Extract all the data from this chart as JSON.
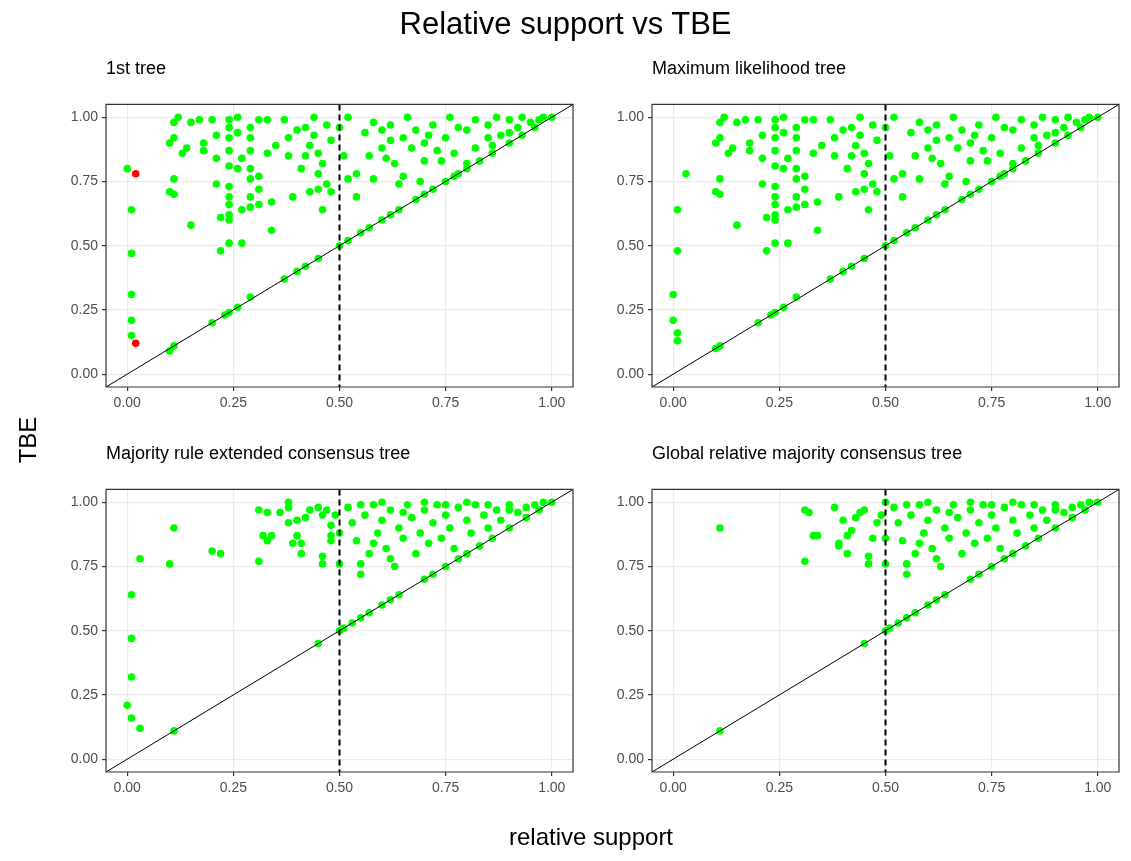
{
  "chart_data": [
    {
      "type": "scatter",
      "title": "1st tree",
      "annotations": [
        "Relative support vs TBE"
      ],
      "ylabel": "TBE",
      "xlim": [
        -0.05,
        1.05
      ],
      "ylim": [
        -0.05,
        1.05
      ],
      "xticks": [
        {
          "value": 0,
          "label": "0.00"
        },
        {
          "value": 0.25,
          "label": "0.25"
        },
        {
          "value": 0.5,
          "label": "0.50"
        },
        {
          "value": 0.75,
          "label": "0.75"
        },
        {
          "value": 1,
          "label": "1.00"
        }
      ],
      "yticks": [
        {
          "value": 0,
          "label": "0.00"
        },
        {
          "value": 0.25,
          "label": "0.25"
        },
        {
          "value": 0.5,
          "label": "0.50"
        },
        {
          "value": 0.75,
          "label": "0.75"
        },
        {
          "value": 1,
          "label": "1.00"
        }
      ],
      "grid": true,
      "marker": "circle",
      "ref_lines": [
        {
          "axis": "x",
          "value": 0.5,
          "color": "#000000",
          "line_style": "dashed"
        }
      ],
      "series": [
        {
          "type": "scatter",
          "color": "#00ff00",
          "x": [
            0,
            0.01,
            0.01,
            0.01,
            0.01,
            0.01,
            0.1,
            0.11,
            0.2,
            0.23,
            0.24,
            0.26,
            0.29,
            0.37,
            0.4,
            0.42,
            0.45,
            0.5,
            0.52,
            0.55,
            0.57,
            0.6,
            0.62,
            0.64,
            0.68,
            0.7,
            0.72,
            0.75,
            0.77,
            0.8,
            0.83,
            0.86,
            0.9,
            0.93,
            0.96,
            1,
            0.11,
            0.12,
            0.1,
            0.11,
            0.11,
            0.1,
            0.11,
            0.15,
            0.17,
            0.13,
            0.14,
            0.18,
            0.18,
            0.15,
            0.2,
            0.21,
            0.21,
            0.21,
            0.22,
            0.22,
            0.24,
            0.24,
            0.24,
            0.24,
            0.24,
            0.24,
            0.24,
            0.24,
            0.24,
            0.24,
            0.24,
            0.26,
            0.26,
            0.26,
            0.27,
            0.27,
            0.27,
            0.29,
            0.29,
            0.29,
            0.29,
            0.29,
            0.29,
            0.29,
            0.31,
            0.31,
            0.31,
            0.31,
            0.33,
            0.33,
            0.34,
            0.34,
            0.35,
            0.37,
            0.38,
            0.38,
            0.39,
            0.4,
            0.41,
            0.42,
            0.42,
            0.43,
            0.43,
            0.44,
            0.44,
            0.45,
            0.45,
            0.45,
            0.46,
            0.46,
            0.47,
            0.47,
            0.48,
            0.48,
            0.5,
            0.51,
            0.52,
            0.52,
            0.54,
            0.54,
            0.56,
            0.57,
            0.58,
            0.58,
            0.6,
            0.61,
            0.62,
            0.63,
            0.64,
            0.65,
            0.66,
            0.67,
            0.69,
            0.7,
            0.71,
            0.73,
            0.74,
            0.76,
            0.77,
            0.78,
            0.8,
            0.82,
            0.8,
            0.85,
            0.88,
            0.9,
            0.92,
            0.95,
            0.97,
            0.85,
            0.82,
            0.78,
            0.75,
            0.72,
            0.68,
            0.65,
            0.87,
            0.93,
            0.98,
            0.9,
            0.86,
            0.7,
            0.62,
            0.6
          ],
          "values": [
            0.8,
            0.64,
            0.47,
            0.31,
            0.21,
            0.15,
            0.09,
            0.11,
            0.2,
            0.23,
            0.24,
            0.26,
            0.3,
            0.37,
            0.4,
            0.42,
            0.45,
            0.5,
            0.52,
            0.55,
            0.57,
            0.6,
            0.62,
            0.64,
            0.68,
            0.7,
            0.72,
            0.75,
            0.77,
            0.8,
            0.83,
            0.86,
            0.9,
            0.93,
            0.96,
            1,
            0.98,
            1.0,
            0.9,
            0.92,
            0.76,
            0.71,
            0.7,
            0.98,
            0.99,
            0.86,
            0.88,
            0.9,
            0.87,
            0.58,
            0.99,
            0.93,
            0.84,
            0.74,
            0.61,
            0.48,
            0.51,
            0.99,
            0.96,
            0.92,
            0.87,
            0.81,
            0.73,
            0.69,
            0.66,
            0.62,
            0.6,
            1.0,
            0.94,
            0.8,
            0.84,
            0.64,
            0.51,
            0.96,
            0.92,
            0.87,
            0.8,
            0.76,
            0.69,
            0.65,
            0.99,
            0.77,
            0.72,
            0.66,
            0.99,
            0.86,
            0.67,
            0.56,
            0.89,
            0.99,
            0.92,
            0.85,
            0.69,
            0.95,
            0.8,
            0.96,
            0.85,
            0.89,
            0.71,
            1.0,
            0.93,
            0.86,
            0.78,
            0.72,
            0.82,
            0.64,
            0.97,
            0.74,
            0.91,
            0.71,
            0.96,
            0.85,
            1.0,
            0.76,
            0.78,
            0.69,
            0.94,
            0.85,
            0.98,
            0.76,
            0.88,
            0.84,
            0.97,
            0.82,
            0.74,
            0.77,
            1.0,
            0.88,
            0.75,
            0.83,
            0.93,
            0.87,
            0.83,
            1.0,
            0.86,
            0.78,
            0.82,
            0.88,
            0.95,
            0.97,
            0.93,
            0.99,
            0.96,
            0.98,
            0.99,
            0.92,
            0.99,
            0.96,
            0.92,
            0.97,
            0.95,
            0.92,
            1.0,
            1.0,
            1.0,
            0.94,
            0.89,
            0.9,
            0.91,
            0.95
          ]
        },
        {
          "type": "scatter",
          "color": "#ff0000",
          "x": [
            0.02,
            0.02
          ],
          "values": [
            0.78,
            0.12
          ]
        },
        {
          "type": "line",
          "color": "#000000",
          "x": [
            -0.05,
            1.05
          ],
          "values": [
            -0.05,
            1.05
          ],
          "marker": "none"
        }
      ]
    },
    {
      "type": "scatter",
      "title": "Maximum likelihood tree",
      "xlim": [
        -0.05,
        1.05
      ],
      "ylim": [
        -0.05,
        1.05
      ],
      "xticks": [
        {
          "value": 0,
          "label": "0.00"
        },
        {
          "value": 0.25,
          "label": "0.25"
        },
        {
          "value": 0.5,
          "label": "0.50"
        },
        {
          "value": 0.75,
          "label": "0.75"
        },
        {
          "value": 1,
          "label": "1.00"
        }
      ],
      "yticks": [
        {
          "value": 0,
          "label": "0.00"
        },
        {
          "value": 0.25,
          "label": "0.25"
        },
        {
          "value": 0.5,
          "label": "0.50"
        },
        {
          "value": 0.75,
          "label": "0.75"
        },
        {
          "value": 1,
          "label": "1.00"
        }
      ],
      "grid": true,
      "marker": "circle",
      "ref_lines": [
        {
          "axis": "x",
          "value": 0.5,
          "color": "#000000",
          "line_style": "dashed"
        }
      ],
      "series": [
        {
          "type": "scatter",
          "color": "#00ff00",
          "x": [
            0,
            0,
            0.01,
            0.01,
            0.01,
            0.01,
            0.03,
            0.1,
            0.11,
            0.2,
            0.23,
            0.24,
            0.26,
            0.29,
            0.37,
            0.4,
            0.42,
            0.45,
            0.5,
            0.52,
            0.55,
            0.57,
            0.6,
            0.62,
            0.64,
            0.68,
            0.7,
            0.72,
            0.75,
            0.77,
            0.8,
            0.83,
            0.86,
            0.9,
            0.93,
            0.96,
            1,
            0.11,
            0.12,
            0.1,
            0.11,
            0.11,
            0.1,
            0.11,
            0.15,
            0.17,
            0.13,
            0.14,
            0.18,
            0.18,
            0.15,
            0.2,
            0.21,
            0.21,
            0.21,
            0.22,
            0.22,
            0.24,
            0.24,
            0.24,
            0.24,
            0.24,
            0.24,
            0.24,
            0.24,
            0.24,
            0.24,
            0.24,
            0.26,
            0.26,
            0.26,
            0.27,
            0.27,
            0.27,
            0.29,
            0.29,
            0.29,
            0.29,
            0.29,
            0.29,
            0.29,
            0.31,
            0.31,
            0.31,
            0.31,
            0.33,
            0.33,
            0.34,
            0.34,
            0.35,
            0.37,
            0.38,
            0.38,
            0.39,
            0.4,
            0.41,
            0.42,
            0.42,
            0.43,
            0.43,
            0.44,
            0.44,
            0.45,
            0.45,
            0.45,
            0.46,
            0.46,
            0.47,
            0.47,
            0.48,
            0.48,
            0.5,
            0.51,
            0.52,
            0.52,
            0.54,
            0.54,
            0.56,
            0.57,
            0.58,
            0.58,
            0.6,
            0.61,
            0.62,
            0.63,
            0.64,
            0.65,
            0.66,
            0.67,
            0.69,
            0.7,
            0.71,
            0.73,
            0.74,
            0.76,
            0.77,
            0.78,
            0.8,
            0.82,
            0.8,
            0.85,
            0.88,
            0.9,
            0.92,
            0.95,
            0.97,
            0.85,
            0.82,
            0.78,
            0.75,
            0.72,
            0.68,
            0.65,
            0.87,
            0.93,
            0.98,
            0.9,
            0.86,
            0.7,
            0.62,
            0.6
          ],
          "values": [
            0.31,
            0.21,
            0.16,
            0.13,
            0.48,
            0.64,
            0.78,
            0.1,
            0.11,
            0.2,
            0.23,
            0.24,
            0.26,
            0.3,
            0.37,
            0.4,
            0.42,
            0.45,
            0.5,
            0.52,
            0.55,
            0.57,
            0.6,
            0.62,
            0.64,
            0.68,
            0.7,
            0.72,
            0.75,
            0.77,
            0.8,
            0.83,
            0.86,
            0.9,
            0.93,
            0.96,
            1,
            0.98,
            1.0,
            0.9,
            0.92,
            0.76,
            0.71,
            0.7,
            0.98,
            0.99,
            0.86,
            0.88,
            0.9,
            0.87,
            0.58,
            0.99,
            0.93,
            0.84,
            0.74,
            0.61,
            0.48,
            0.51,
            0.99,
            0.96,
            0.92,
            0.87,
            0.81,
            0.73,
            0.69,
            0.66,
            0.62,
            0.6,
            1.0,
            0.94,
            0.8,
            0.84,
            0.64,
            0.51,
            0.96,
            0.92,
            0.87,
            0.8,
            0.76,
            0.69,
            0.65,
            0.99,
            0.77,
            0.72,
            0.66,
            0.99,
            0.86,
            0.67,
            0.56,
            0.89,
            0.99,
            0.92,
            0.85,
            0.69,
            0.95,
            0.8,
            0.96,
            0.85,
            0.89,
            0.71,
            1.0,
            0.93,
            0.86,
            0.78,
            0.72,
            0.82,
            0.64,
            0.97,
            0.74,
            0.91,
            0.71,
            0.96,
            0.85,
            1.0,
            0.76,
            0.78,
            0.69,
            0.94,
            0.85,
            0.98,
            0.76,
            0.88,
            0.84,
            0.97,
            0.82,
            0.74,
            0.77,
            1.0,
            0.88,
            0.75,
            0.83,
            0.93,
            0.87,
            0.83,
            1.0,
            0.86,
            0.78,
            0.82,
            0.88,
            0.95,
            0.97,
            0.93,
            0.99,
            0.96,
            0.98,
            0.99,
            0.92,
            0.99,
            0.96,
            0.92,
            0.97,
            0.95,
            0.92,
            1.0,
            1.0,
            1.0,
            0.94,
            0.89,
            0.9,
            0.91,
            0.95
          ]
        },
        {
          "type": "line",
          "color": "#000000",
          "x": [
            -0.05,
            1.05
          ],
          "values": [
            -0.05,
            1.05
          ],
          "marker": "none"
        }
      ]
    },
    {
      "type": "scatter",
      "title": "Majority rule extended consensus tree",
      "xlabel": "relative support",
      "xlim": [
        -0.05,
        1.05
      ],
      "ylim": [
        -0.05,
        1.05
      ],
      "xticks": [
        {
          "value": 0,
          "label": "0.00"
        },
        {
          "value": 0.25,
          "label": "0.25"
        },
        {
          "value": 0.5,
          "label": "0.50"
        },
        {
          "value": 0.75,
          "label": "0.75"
        },
        {
          "value": 1,
          "label": "1.00"
        }
      ],
      "yticks": [
        {
          "value": 0,
          "label": "0.00"
        },
        {
          "value": 0.25,
          "label": "0.25"
        },
        {
          "value": 0.5,
          "label": "0.50"
        },
        {
          "value": 0.75,
          "label": "0.75"
        },
        {
          "value": 1,
          "label": "1.00"
        }
      ],
      "grid": true,
      "marker": "circle",
      "ref_lines": [
        {
          "axis": "x",
          "value": 0.5,
          "color": "#000000",
          "line_style": "dashed"
        }
      ],
      "series": [
        {
          "type": "scatter",
          "color": "#00ff00",
          "x": [
            0,
            0.01,
            0.01,
            0.01,
            0.01,
            0.03,
            0.03,
            0.1,
            0.11,
            0.11,
            0.2,
            0.22,
            0.31,
            0.31,
            0.33,
            0.36,
            0.38,
            0.38,
            0.32,
            0.33,
            0.34,
            0.38,
            0.39,
            0.4,
            0.41,
            0.41,
            0.4,
            0.42,
            0.43,
            0.45,
            0.46,
            0.47,
            0.46,
            0.46,
            0.48,
            0.48,
            0.48,
            0.49,
            0.5,
            0.5,
            0.45,
            0.5,
            0.51,
            0.53,
            0.55,
            0.57,
            0.6,
            0.62,
            0.64,
            0.7,
            0.72,
            0.75,
            0.78,
            0.8,
            0.83,
            0.86,
            0.9,
            0.94,
            0.97,
            1,
            0.52,
            0.53,
            0.54,
            0.55,
            0.55,
            0.56,
            0.57,
            0.58,
            0.59,
            0.6,
            0.61,
            0.62,
            0.63,
            0.64,
            0.65,
            0.66,
            0.67,
            0.68,
            0.69,
            0.7,
            0.71,
            0.72,
            0.73,
            0.74,
            0.75,
            0.76,
            0.77,
            0.78,
            0.8,
            0.81,
            0.82,
            0.84,
            0.85,
            0.87,
            0.88,
            0.9,
            0.92,
            0.94,
            0.96,
            0.98,
            0.55,
            0.6,
            0.65,
            0.7,
            0.75,
            0.8,
            0.85,
            0.9,
            0.58,
            0.62
          ],
          "values": [
            0.21,
            0.16,
            0.32,
            0.47,
            0.64,
            0.12,
            0.78,
            0.76,
            0.9,
            0.11,
            0.81,
            0.8,
            0.77,
            0.97,
            0.96,
            0.96,
            1.0,
            0.98,
            0.87,
            0.85,
            0.87,
            0.92,
            0.84,
            0.87,
            0.84,
            0.8,
            0.93,
            0.94,
            0.97,
            0.98,
            0.95,
            0.97,
            0.79,
            0.76,
            0.91,
            0.85,
            0.87,
            0.95,
            0.76,
            0.88,
            0.45,
            0.5,
            0.51,
            0.53,
            0.55,
            0.57,
            0.6,
            0.62,
            0.64,
            0.7,
            0.72,
            0.75,
            0.78,
            0.8,
            0.83,
            0.86,
            0.9,
            0.94,
            0.97,
            1,
            0.98,
            0.92,
            0.85,
            0.76,
            0.72,
            0.95,
            0.8,
            0.99,
            0.88,
            0.93,
            0.82,
            0.97,
            0.75,
            0.9,
            0.86,
            0.99,
            0.94,
            0.8,
            0.88,
            0.97,
            0.84,
            0.92,
            0.99,
            0.86,
            0.95,
            0.9,
            0.82,
            0.98,
            0.93,
            0.88,
            0.99,
            0.95,
            0.9,
            0.97,
            0.93,
            0.99,
            0.96,
            0.98,
            0.99,
            1.0,
            0.99,
            1.0,
            0.96,
            1.0,
            0.99,
            1.0,
            0.99,
            0.97,
            0.84,
            0.78
          ]
        },
        {
          "type": "line",
          "color": "#000000",
          "x": [
            -0.05,
            1.05
          ],
          "values": [
            -0.05,
            1.05
          ],
          "marker": "none"
        }
      ]
    },
    {
      "type": "scatter",
      "title": "Global relative majority consensus tree",
      "xlim": [
        -0.05,
        1.05
      ],
      "ylim": [
        -0.05,
        1.05
      ],
      "xticks": [
        {
          "value": 0,
          "label": "0.00"
        },
        {
          "value": 0.25,
          "label": "0.25"
        },
        {
          "value": 0.5,
          "label": "0.50"
        },
        {
          "value": 0.75,
          "label": "0.75"
        },
        {
          "value": 1,
          "label": "1.00"
        }
      ],
      "yticks": [
        {
          "value": 0,
          "label": "0.00"
        },
        {
          "value": 0.25,
          "label": "0.25"
        },
        {
          "value": 0.5,
          "label": "0.50"
        },
        {
          "value": 0.75,
          "label": "0.75"
        },
        {
          "value": 1,
          "label": "1.00"
        }
      ],
      "grid": true,
      "marker": "circle",
      "ref_lines": [
        {
          "axis": "x",
          "value": 0.5,
          "color": "#000000",
          "line_style": "dashed"
        }
      ],
      "series": [
        {
          "type": "scatter",
          "color": "#00ff00",
          "x": [
            0.11,
            0.11,
            0.31,
            0.31,
            0.32,
            0.33,
            0.34,
            0.38,
            0.39,
            0.39,
            0.41,
            0.41,
            0.4,
            0.42,
            0.43,
            0.44,
            0.45,
            0.46,
            0.46,
            0.47,
            0.48,
            0.49,
            0.5,
            0.5,
            0.5,
            0.45,
            0.5,
            0.51,
            0.53,
            0.55,
            0.57,
            0.6,
            0.62,
            0.64,
            0.7,
            0.72,
            0.75,
            0.78,
            0.8,
            0.83,
            0.86,
            0.9,
            0.94,
            0.97,
            1,
            0.52,
            0.53,
            0.54,
            0.55,
            0.55,
            0.56,
            0.57,
            0.58,
            0.59,
            0.6,
            0.61,
            0.62,
            0.63,
            0.64,
            0.65,
            0.66,
            0.67,
            0.68,
            0.69,
            0.7,
            0.71,
            0.72,
            0.73,
            0.74,
            0.75,
            0.76,
            0.77,
            0.78,
            0.8,
            0.81,
            0.82,
            0.84,
            0.85,
            0.87,
            0.88,
            0.9,
            0.92,
            0.94,
            0.96,
            0.98,
            0.55,
            0.6,
            0.65,
            0.7,
            0.75,
            0.8,
            0.85,
            0.9,
            0.58,
            0.62
          ],
          "values": [
            0.11,
            0.9,
            0.77,
            0.97,
            0.96,
            0.87,
            0.87,
            0.98,
            0.83,
            0.84,
            0.8,
            0.87,
            0.93,
            0.89,
            0.94,
            0.96,
            0.97,
            0.76,
            0.79,
            0.86,
            0.92,
            0.95,
            0.76,
            0.86,
            1.0,
            0.45,
            0.5,
            0.51,
            0.53,
            0.55,
            0.57,
            0.6,
            0.62,
            0.64,
            0.7,
            0.72,
            0.75,
            0.78,
            0.8,
            0.83,
            0.86,
            0.9,
            0.94,
            0.97,
            1,
            0.98,
            0.92,
            0.85,
            0.76,
            0.72,
            0.95,
            0.8,
            0.99,
            0.88,
            0.93,
            0.82,
            0.97,
            0.75,
            0.9,
            0.86,
            0.99,
            0.94,
            0.8,
            0.88,
            0.97,
            0.84,
            0.92,
            0.99,
            0.86,
            0.95,
            0.9,
            0.82,
            0.98,
            0.93,
            0.88,
            0.99,
            0.95,
            0.9,
            0.97,
            0.93,
            0.99,
            0.96,
            0.98,
            0.99,
            1.0,
            0.99,
            1.0,
            0.96,
            1.0,
            0.99,
            1.0,
            0.99,
            0.97,
            0.84,
            0.78
          ]
        },
        {
          "type": "line",
          "color": "#000000",
          "x": [
            -0.05,
            1.05
          ],
          "values": [
            -0.05,
            1.05
          ],
          "marker": "none"
        }
      ]
    }
  ]
}
